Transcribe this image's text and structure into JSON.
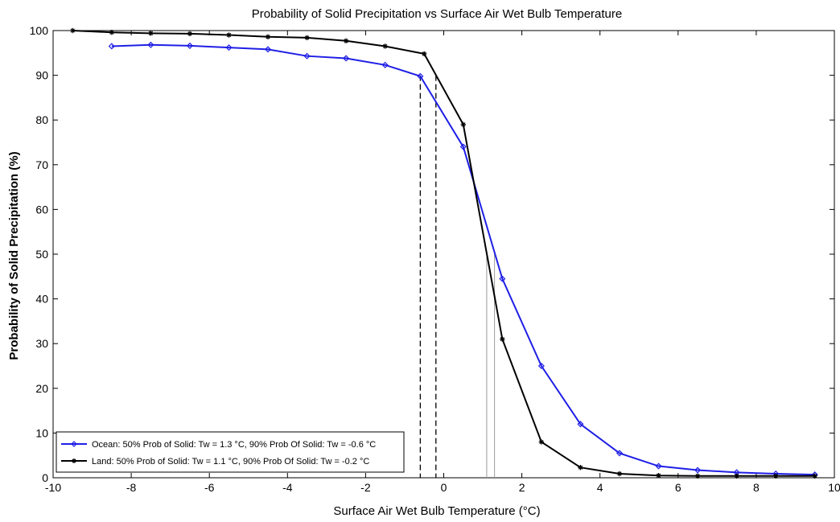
{
  "chart_data": {
    "type": "line",
    "title": "Probability of Solid Precipitation vs Surface Air Wet Bulb Temperature",
    "xlabel": "Surface Air Wet Bulb Temperature (°C)",
    "ylabel": "Probability of Solid Precipitation (%)",
    "xlim": [
      -10,
      10
    ],
    "ylim": [
      0,
      100
    ],
    "xticks": [
      -10,
      -8,
      -6,
      -4,
      -2,
      0,
      2,
      4,
      6,
      8,
      10
    ],
    "yticks": [
      0,
      10,
      20,
      30,
      40,
      50,
      60,
      70,
      80,
      90,
      100
    ],
    "grid": false,
    "legend_position": "bottom-left",
    "series": [
      {
        "name": "Ocean: 50% Prob of Solid: Tw = 1.3 °C,  90% Prob Of Solid: Tw = -0.6 °C",
        "color": "#1f1fe6",
        "marker": "diamond",
        "x": [
          -8.5,
          -7.5,
          -6.5,
          -5.5,
          -4.5,
          -3.5,
          -2.5,
          -1.5,
          -0.6,
          0.5,
          1.5,
          2.5,
          3.5,
          4.5,
          5.5,
          6.5,
          7.5,
          8.5,
          9.5
        ],
        "y": [
          96.5,
          96.8,
          96.6,
          96.2,
          95.8,
          94.3,
          93.8,
          92.3,
          89.8,
          74,
          44.5,
          25,
          12,
          5.5,
          2.6,
          1.7,
          1.2,
          0.9,
          0.7
        ]
      },
      {
        "name": "Land: 50% Prob of Solid: Tw = 1.1 °C,  90% Prob Of Solid: Tw = -0.2 °C",
        "color": "#000000",
        "marker": "star",
        "x": [
          -9.5,
          -8.5,
          -7.5,
          -6.5,
          -5.5,
          -4.5,
          -3.5,
          -2.5,
          -1.5,
          -0.5,
          0.5,
          1.5,
          2.5,
          3.5,
          4.5,
          5.5,
          6.5,
          7.5,
          8.5,
          9.5
        ],
        "y": [
          100,
          99.6,
          99.4,
          99.3,
          99.0,
          98.6,
          98.4,
          97.7,
          96.5,
          94.8,
          79,
          31,
          8,
          2.3,
          0.9,
          0.5,
          0.4,
          0.4,
          0.4,
          0.4
        ]
      }
    ],
    "reference_lines": [
      {
        "x": -0.6,
        "style": "dashed",
        "color": "#000000"
      },
      {
        "x": -0.2,
        "style": "dashed",
        "color": "#000000"
      },
      {
        "x": 1.1,
        "style": "solid",
        "color": "#9a9a9a"
      },
      {
        "x": 1.3,
        "style": "solid",
        "color": "#9a9a9a"
      }
    ]
  }
}
